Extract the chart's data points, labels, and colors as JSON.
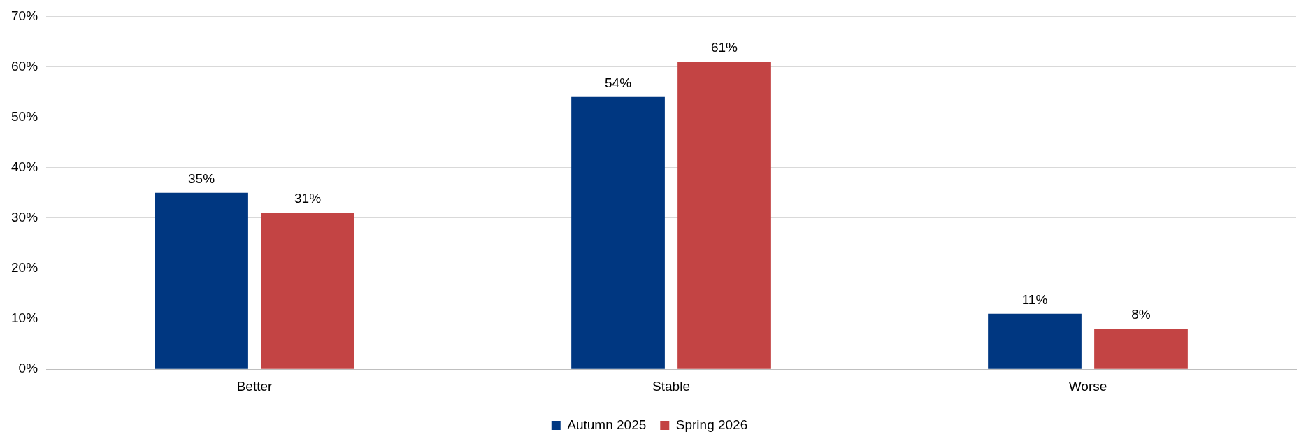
{
  "chart_data": {
    "type": "bar",
    "categories": [
      "Better",
      "Stable",
      "Worse"
    ],
    "series": [
      {
        "name": "Autumn 2025",
        "color": "#003781",
        "values": [
          35,
          54,
          11
        ],
        "value_labels": [
          "35%",
          "54%",
          "11%"
        ]
      },
      {
        "name": "Spring 2026",
        "color": "#c34444",
        "values": [
          31,
          61,
          8
        ],
        "value_labels": [
          "31%",
          "61%",
          "8%"
        ]
      }
    ],
    "ylim": [
      0,
      70
    ],
    "yticks": [
      {
        "value": 0,
        "label": "0%"
      },
      {
        "value": 10,
        "label": "10%"
      },
      {
        "value": 20,
        "label": "20%"
      },
      {
        "value": 30,
        "label": "30%"
      },
      {
        "value": 40,
        "label": "40%"
      },
      {
        "value": 50,
        "label": "50%"
      },
      {
        "value": 60,
        "label": "60%"
      },
      {
        "value": 70,
        "label": "70%"
      }
    ],
    "grid": "y",
    "legend": "bottom"
  }
}
